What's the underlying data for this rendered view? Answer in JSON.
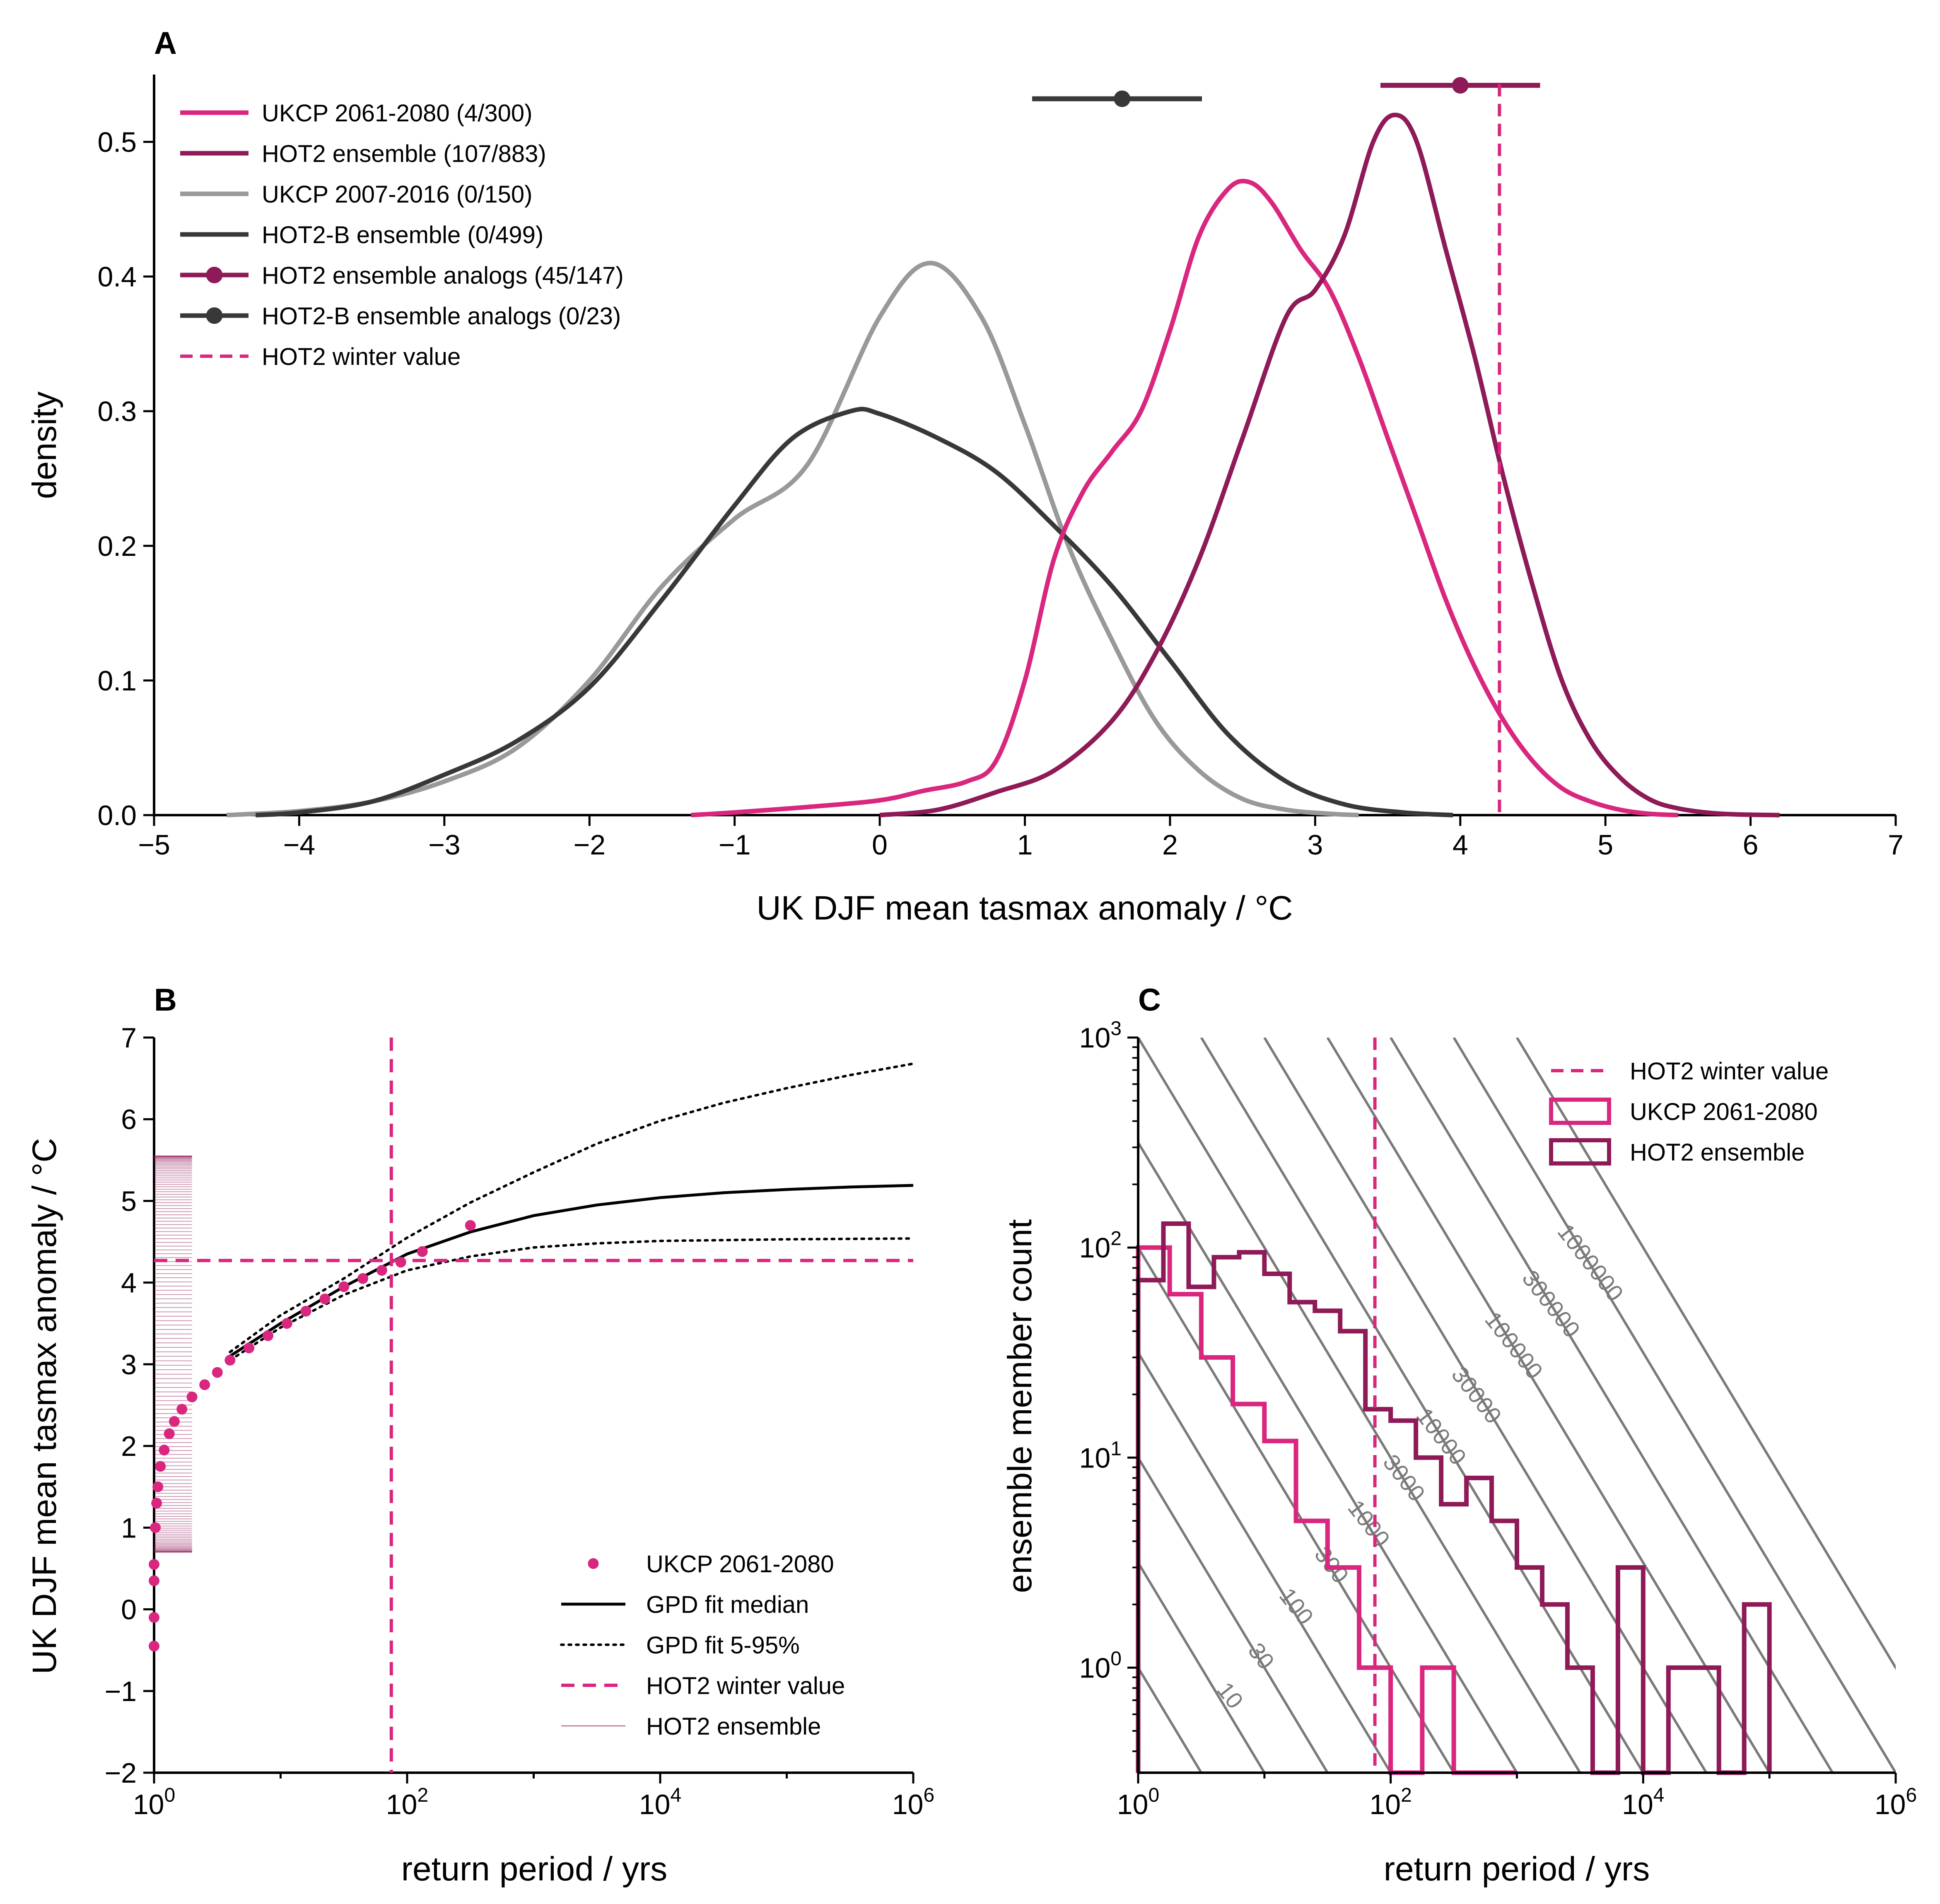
{
  "colors": {
    "ukcp_future": "#d9267f",
    "hot2": "#8e1a57",
    "ukcp_present": "#999999",
    "hot2b": "#383838",
    "contour": "#7a7a7a"
  },
  "panels": {
    "A": {
      "letter": "A",
      "xlabel": "UK DJF mean tasmax anomaly / °C",
      "ylabel": "density",
      "xlim": [
        -5,
        7
      ],
      "ylim": [
        0,
        0.55
      ],
      "xticks": [
        -5,
        -4,
        -3,
        -2,
        -1,
        0,
        1,
        2,
        3,
        4,
        5,
        6,
        7
      ],
      "xtick_labels": [
        "−5",
        "−4",
        "−3",
        "−2",
        "−1",
        "0",
        "1",
        "2",
        "3",
        "4",
        "5",
        "6",
        "7"
      ],
      "yticks": [
        0.0,
        0.1,
        0.2,
        0.3,
        0.4,
        0.5
      ],
      "ytick_labels": [
        "0.0",
        "0.1",
        "0.2",
        "0.3",
        "0.4",
        "0.5"
      ],
      "legend": [
        {
          "label": "UKCP 2061-2080 (4/300)",
          "style": "line",
          "color": "ukcp_future"
        },
        {
          "label": "HOT2 ensemble (107/883)",
          "style": "line",
          "color": "hot2"
        },
        {
          "label": "UKCP 2007-2016 (0/150)",
          "style": "line",
          "color": "ukcp_present"
        },
        {
          "label": "HOT2-B ensemble (0/499)",
          "style": "line",
          "color": "hot2b"
        },
        {
          "label": "HOT2 ensemble analogs (45/147)",
          "style": "dotline",
          "color": "hot2"
        },
        {
          "label": "HOT2-B ensemble analogs (0/23)",
          "style": "dotline",
          "color": "hot2b"
        },
        {
          "label": "HOT2 winter value",
          "style": "dash",
          "color": "ukcp_future"
        }
      ]
    },
    "B": {
      "letter": "B",
      "xlabel": "return period / yrs",
      "ylabel": "UK DJF mean tasmax anomaly / °C",
      "ylim": [
        -2,
        7
      ],
      "yticks": [
        -2,
        -1,
        0,
        1,
        2,
        3,
        4,
        5,
        6,
        7
      ],
      "ytick_labels": [
        "−2",
        "−1",
        "0",
        "1",
        "2",
        "3",
        "4",
        "5",
        "6",
        "7"
      ],
      "xlog_range": [
        0,
        6
      ],
      "xtick_exps": [
        0,
        2,
        4,
        6
      ],
      "legend": [
        {
          "label": "UKCP 2061-2080",
          "style": "dot",
          "color": "ukcp_future"
        },
        {
          "label": "GPD fit median",
          "style": "line",
          "color": "black"
        },
        {
          "label": "GPD fit 5-95%",
          "style": "dotted",
          "color": "black"
        },
        {
          "label": "HOT2 winter value",
          "style": "dash",
          "color": "ukcp_future"
        },
        {
          "label": "HOT2 ensemble",
          "style": "thin",
          "color": "hot2"
        }
      ]
    },
    "C": {
      "letter": "C",
      "xlabel": "return period / yrs",
      "ylabel": "ensemble member count",
      "xlog_range": [
        0,
        6
      ],
      "ylog_range": [
        -0.5,
        3
      ],
      "xtick_exps": [
        0,
        2,
        4,
        6
      ],
      "ytick_exps": [
        0,
        1,
        2,
        3
      ],
      "contour_labels": [
        "10",
        "30",
        "100",
        "300",
        "1000",
        "3000",
        "10000",
        "30000",
        "100000",
        "300000",
        "1000000"
      ],
      "legend": [
        {
          "label": "HOT2 winter value",
          "style": "dash",
          "color": "ukcp_future"
        },
        {
          "label": "UKCP 2061-2080",
          "style": "box",
          "color": "ukcp_future"
        },
        {
          "label": "HOT2 ensemble",
          "style": "box",
          "color": "hot2"
        }
      ]
    }
  },
  "chart_data": [
    {
      "panel": "A",
      "type": "line",
      "series": [
        {
          "name": "UKCP 2061-2080 (4/300)",
          "color": "ukcp_future",
          "x": [
            -1.3,
            -1.0,
            -0.5,
            0.0,
            0.3,
            0.6,
            0.8,
            1.0,
            1.2,
            1.4,
            1.6,
            1.8,
            2.0,
            2.2,
            2.4,
            2.55,
            2.7,
            2.9,
            3.1,
            3.3,
            3.5,
            3.7,
            3.9,
            4.1,
            4.3,
            4.5,
            4.7,
            4.9,
            5.1,
            5.3,
            5.5
          ],
          "y": [
            0.0,
            0.002,
            0.006,
            0.011,
            0.018,
            0.025,
            0.04,
            0.1,
            0.19,
            0.24,
            0.27,
            0.3,
            0.36,
            0.43,
            0.465,
            0.47,
            0.455,
            0.42,
            0.39,
            0.34,
            0.28,
            0.22,
            0.16,
            0.11,
            0.07,
            0.04,
            0.02,
            0.01,
            0.004,
            0.001,
            0.0
          ]
        },
        {
          "name": "HOT2 ensemble (107/883)",
          "color": "hot2",
          "x": [
            0.0,
            0.4,
            0.8,
            1.2,
            1.6,
            1.9,
            2.2,
            2.5,
            2.8,
            3.0,
            3.2,
            3.4,
            3.55,
            3.7,
            3.9,
            4.1,
            4.3,
            4.5,
            4.7,
            4.9,
            5.1,
            5.3,
            5.5,
            5.8,
            6.2
          ],
          "y": [
            0.0,
            0.004,
            0.017,
            0.033,
            0.07,
            0.12,
            0.19,
            0.28,
            0.37,
            0.39,
            0.43,
            0.5,
            0.52,
            0.5,
            0.42,
            0.34,
            0.25,
            0.17,
            0.1,
            0.055,
            0.028,
            0.012,
            0.005,
            0.001,
            0.0
          ]
        },
        {
          "name": "UKCP 2007-2016 (0/150)",
          "color": "ukcp_present",
          "x": [
            -4.5,
            -4.0,
            -3.5,
            -3.0,
            -2.5,
            -2.0,
            -1.5,
            -1.0,
            -0.5,
            0.0,
            0.35,
            0.7,
            1.0,
            1.3,
            1.6,
            1.9,
            2.2,
            2.5,
            2.8,
            3.1,
            3.3
          ],
          "y": [
            0.0,
            0.003,
            0.01,
            0.025,
            0.05,
            0.1,
            0.17,
            0.22,
            0.26,
            0.37,
            0.41,
            0.37,
            0.29,
            0.2,
            0.13,
            0.07,
            0.033,
            0.012,
            0.004,
            0.001,
            0.0
          ]
        },
        {
          "name": "HOT2-B ensemble (0/499)",
          "color": "hot2b",
          "x": [
            -4.3,
            -4.0,
            -3.5,
            -3.0,
            -2.5,
            -2.0,
            -1.5,
            -1.0,
            -0.6,
            -0.2,
            0.0,
            0.4,
            0.8,
            1.2,
            1.6,
            2.0,
            2.4,
            2.8,
            3.2,
            3.6,
            3.95
          ],
          "y": [
            0.0,
            0.002,
            0.01,
            0.03,
            0.055,
            0.095,
            0.16,
            0.23,
            0.28,
            0.3,
            0.298,
            0.28,
            0.255,
            0.215,
            0.17,
            0.115,
            0.06,
            0.025,
            0.008,
            0.002,
            0.0
          ]
        }
      ],
      "analogs": [
        {
          "name": "HOT2 ensemble analogs (45/147)",
          "color": "hot2",
          "center": 4.0,
          "low": 3.45,
          "high": 4.55,
          "y": 0.542
        },
        {
          "name": "HOT2-B ensemble analogs (0/23)",
          "color": "hot2b",
          "center": 1.67,
          "low": 1.05,
          "high": 2.22,
          "y": 0.532
        }
      ],
      "vline": {
        "name": "HOT2 winter value",
        "x": 4.27
      }
    },
    {
      "panel": "B",
      "type": "scatter",
      "hline": 4.27,
      "vline_return_period": 75,
      "gpd_median": {
        "log10_rp": [
          0.6,
          1.0,
          1.5,
          2.0,
          2.5,
          3.0,
          3.5,
          4.0,
          4.5,
          5.0,
          5.5,
          6.0
        ],
        "y": [
          3.1,
          3.5,
          3.95,
          4.35,
          4.62,
          4.82,
          4.95,
          5.04,
          5.1,
          5.14,
          5.17,
          5.19
        ]
      },
      "gpd_upper": {
        "log10_rp": [
          0.6,
          1.0,
          1.5,
          2.0,
          2.5,
          3.0,
          3.5,
          4.0,
          4.5,
          5.0,
          5.5,
          6.0
        ],
        "y": [
          3.15,
          3.6,
          4.05,
          4.55,
          4.98,
          5.35,
          5.7,
          5.98,
          6.2,
          6.38,
          6.54,
          6.68
        ]
      },
      "gpd_lower": {
        "log10_rp": [
          0.6,
          1.0,
          1.5,
          2.0,
          2.5,
          3.0,
          3.5,
          4.0,
          4.5,
          5.0,
          5.5,
          6.0
        ],
        "y": [
          3.05,
          3.45,
          3.85,
          4.15,
          4.32,
          4.43,
          4.48,
          4.51,
          4.52,
          4.53,
          4.535,
          4.54
        ]
      },
      "ukcp_points": {
        "log10_rp": [
          0.0,
          0.0,
          0.0,
          0.0,
          0.01,
          0.02,
          0.03,
          0.05,
          0.08,
          0.12,
          0.16,
          0.22,
          0.3,
          0.4,
          0.5,
          0.6,
          0.75,
          0.9,
          1.05,
          1.2,
          1.35,
          1.5,
          1.65,
          1.8,
          1.95,
          2.12,
          2.5
        ],
        "y": [
          -0.45,
          -0.1,
          0.35,
          0.55,
          1.0,
          1.3,
          1.5,
          1.75,
          1.95,
          2.15,
          2.3,
          2.45,
          2.6,
          2.75,
          2.9,
          3.05,
          3.2,
          3.35,
          3.5,
          3.65,
          3.8,
          3.95,
          4.05,
          4.15,
          4.25,
          4.38,
          4.7
        ]
      },
      "hot2_rug": {
        "log10_rp_range": [
          0,
          0.3
        ],
        "y_range": [
          0.7,
          5.55
        ]
      }
    },
    {
      "panel": "C",
      "type": "bar",
      "hot2_winter_return_period": 75,
      "ukcp_hist": {
        "edges_log10": [
          0,
          0.25,
          0.5,
          0.75,
          1.0,
          1.25,
          1.5,
          1.75,
          2.0,
          2.25,
          2.5,
          2.75,
          3.0
        ],
        "counts": [
          100,
          60,
          30,
          18,
          12,
          5,
          3,
          1,
          0,
          1,
          0,
          0
        ]
      },
      "hot2_hist": {
        "edges_log10": [
          0,
          0.2,
          0.4,
          0.6,
          0.8,
          1.0,
          1.2,
          1.4,
          1.6,
          1.8,
          2.0,
          2.2,
          2.4,
          2.6,
          2.8,
          3.0,
          3.2,
          3.4,
          3.6,
          3.8,
          4.0,
          4.2,
          4.4,
          4.6,
          4.8,
          5.0
        ],
        "counts": [
          70,
          130,
          65,
          90,
          95,
          75,
          55,
          50,
          40,
          17,
          15,
          10,
          6,
          8,
          5,
          3,
          2,
          1,
          0,
          3,
          0,
          1,
          1,
          0,
          2
        ]
      },
      "contour_levels": [
        10,
        30,
        100,
        300,
        1000,
        3000,
        10000,
        30000,
        100000,
        300000,
        1000000
      ]
    }
  ]
}
